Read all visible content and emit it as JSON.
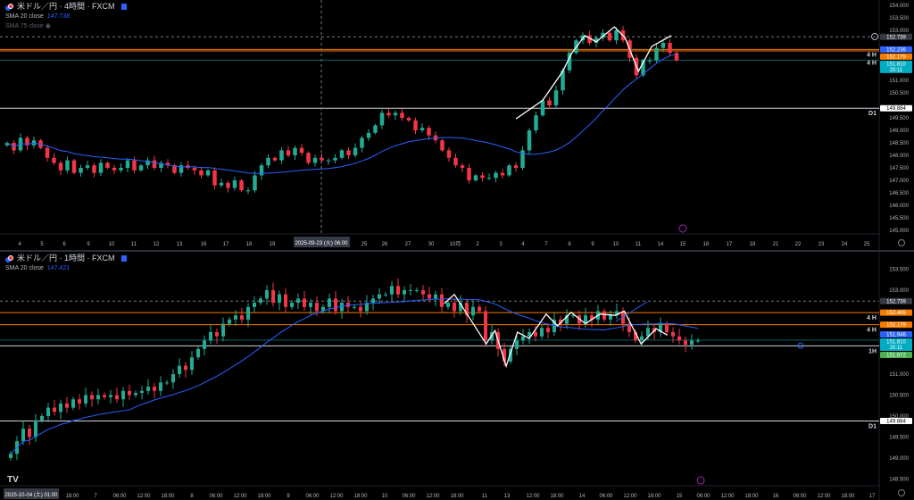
{
  "colors": {
    "up": "#22ab94",
    "down": "#f23645",
    "sma": "#2962ff",
    "bg": "#000000",
    "orange": "#f57c00",
    "teal": "#00bcd4",
    "green": "#4caf50",
    "gray": "#363a45"
  },
  "pane1": {
    "title": "米ドル／円 · 4時間 · FXCM",
    "sma20_label": "SMA 20 close",
    "sma20_value": "147.738",
    "sma75_label": "SMA 75 close",
    "cursor_time": "2025-09-23 (火)  06:00",
    "lines": [
      {
        "price": 152.739,
        "label": "152.739",
        "style": "dashed",
        "color": "#363a45",
        "tag": ""
      },
      {
        "price": 152.236,
        "label": "152.236",
        "style": "solid",
        "color": "#f57c00",
        "tag": "4 H",
        "labelColor": "#2962ff"
      },
      {
        "price": 152.179,
        "label": "152.179",
        "style": "solid",
        "color": "#f57c00",
        "tag": "4 H",
        "labelColor": "#f57c00"
      },
      {
        "price": 151.81,
        "label": "151.810",
        "sub": "20:11",
        "style": "solid",
        "color": "#006064",
        "tag": "",
        "labelColor": "#00acc1"
      },
      {
        "price": 149.884,
        "label": "149.884",
        "style": "solid",
        "color": "#d1d4dc",
        "tag": "D1",
        "labelColor": "#ffffff"
      }
    ]
  },
  "pane2": {
    "title": "米ドル／円 · 1時間 · FXCM",
    "sma20_label": "SMA 20 close",
    "sma20_value": "147.421",
    "cursor_time": "2025-10-04 (土)  01:00",
    "lines": [
      {
        "price": 152.739,
        "label": "152.739",
        "style": "dashed",
        "color": "#363a45",
        "tag": ""
      },
      {
        "price": 152.465,
        "label": "152.465",
        "style": "solid",
        "color": "#f57c00",
        "tag": "4 H",
        "labelColor": "#f57c00"
      },
      {
        "price": 152.179,
        "label": "152.179",
        "style": "solid",
        "color": "#f57c00",
        "tag": "4 H",
        "labelColor": "#f57c00"
      },
      {
        "price": 151.946,
        "label": "151.946",
        "style": "none",
        "color": "#2962ff",
        "tag": "",
        "labelColor": "#2962ff"
      },
      {
        "price": 151.81,
        "label": "151.810",
        "sub": "20:11",
        "style": "solid",
        "color": "#006064",
        "tag": "",
        "labelColor": "#00acc1"
      },
      {
        "price": 151.672,
        "label": "151.672",
        "style": "solid",
        "color": "#d1d4dc",
        "tag": "1H",
        "labelColor": "#4caf50"
      },
      {
        "price": 149.884,
        "label": "149.884",
        "style": "solid",
        "color": "#d1d4dc",
        "tag": "D1",
        "labelColor": "#ffffff"
      }
    ]
  },
  "chart_data": [
    {
      "type": "candlestick",
      "title": "米ドル／円 · 4時間 · FXCM",
      "ylim": [
        144.8,
        154.2
      ],
      "yticks": [
        "154.000",
        "153.500",
        "153.000",
        "151.000",
        "150.500",
        "149.500",
        "149.000",
        "148.500",
        "148.000",
        "147.500",
        "147.000",
        "146.500",
        "146.000",
        "145.500",
        "145.000"
      ],
      "xticks": [
        "4",
        "5",
        "6",
        "9",
        "10",
        "11",
        "12",
        "13",
        "16",
        "17",
        "18",
        "19",
        "25",
        "26",
        "27",
        "30",
        "10月",
        "2",
        "3",
        "4",
        "7",
        "8",
        "9",
        "10",
        "11",
        "14",
        "15",
        "16",
        "17",
        "18",
        "21",
        "22",
        "23",
        "24",
        "25"
      ],
      "closes": [
        148.5,
        148.2,
        148.7,
        148.4,
        148.6,
        148.3,
        147.9,
        147.7,
        147.4,
        147.8,
        147.3,
        147.5,
        147.6,
        147.3,
        147.7,
        147.5,
        147.4,
        147.5,
        147.8,
        147.4,
        147.6,
        147.8,
        147.5,
        147.7,
        147.6,
        147.3,
        147.6,
        147.5,
        147.4,
        147.2,
        147.4,
        146.8,
        146.9,
        146.7,
        147.0,
        146.6,
        146.6,
        147.2,
        147.6,
        147.9,
        147.8,
        148.2,
        148.0,
        148.3,
        148.1,
        147.7,
        147.9,
        147.8,
        147.8,
        147.9,
        148.2,
        148.0,
        148.3,
        148.7,
        148.9,
        149.2,
        149.7,
        149.6,
        149.7,
        149.5,
        149.4,
        149.0,
        149.1,
        148.8,
        148.6,
        148.2,
        147.9,
        147.6,
        147.5,
        147.0,
        147.2,
        147.1,
        147.1,
        147.3,
        147.2,
        147.6,
        147.5,
        148.2,
        149.0,
        149.6,
        150.2,
        150.0,
        150.6,
        151.4,
        152.1,
        152.6,
        152.8,
        152.5,
        152.7,
        152.9,
        152.6,
        153.0,
        152.6,
        151.9,
        151.2,
        151.8,
        151.8,
        152.3,
        152.5,
        152.1,
        151.8
      ],
      "sma_period": 20,
      "zigzag": [
        [
          76,
          149.46
        ],
        [
          80,
          150.2
        ],
        [
          83,
          151.36
        ],
        [
          84.3,
          152.07
        ],
        [
          86.3,
          152.79
        ],
        [
          88,
          152.54
        ],
        [
          90.7,
          153.14
        ],
        [
          92.3,
          152.71
        ],
        [
          94.3,
          151.36
        ],
        [
          96.3,
          152.36
        ],
        [
          99.2,
          152.79
        ]
      ]
    },
    {
      "type": "candlestick",
      "title": "米ドル／円 · 1時間 · FXCM",
      "ylim": [
        148.3,
        153.85
      ],
      "yticks": [
        "153.500",
        "153.000",
        "151.000",
        "150.500",
        "150.000",
        "149.500",
        "149.000",
        "148.500"
      ],
      "xticks": [
        "18:00",
        "7",
        "06:00",
        "12:00",
        "18:00",
        "8",
        "06:00",
        "12:00",
        "18:00",
        "9",
        "06:00",
        "12:00",
        "18:00",
        "10",
        "06:00",
        "12:00",
        "18:00",
        "11",
        "13",
        "12:00",
        "18:00",
        "14",
        "06:00",
        "12:00",
        "18:00",
        "15",
        "06:00",
        "12:00",
        "18:00",
        "16",
        "06:00",
        "12:00",
        "18:00",
        "17"
      ],
      "closes": [
        149.1,
        149.4,
        149.7,
        149.5,
        149.9,
        150.0,
        150.2,
        150.1,
        150.3,
        150.2,
        150.4,
        150.3,
        150.5,
        150.4,
        150.5,
        150.45,
        150.5,
        150.4,
        150.6,
        150.5,
        150.55,
        150.6,
        150.7,
        150.6,
        150.8,
        150.8,
        151.0,
        151.2,
        151.1,
        151.4,
        151.6,
        151.8,
        152.0,
        151.9,
        152.2,
        152.3,
        152.4,
        152.3,
        152.6,
        152.7,
        152.8,
        153.0,
        152.7,
        152.9,
        152.6,
        152.7,
        152.8,
        152.6,
        152.7,
        152.5,
        152.6,
        152.8,
        152.5,
        152.7,
        152.6,
        152.6,
        152.5,
        152.7,
        152.8,
        152.9,
        152.9,
        153.1,
        152.9,
        153.0,
        153.0,
        153.0,
        152.9,
        152.8,
        152.9,
        152.6,
        152.7,
        152.5,
        152.7,
        152.4,
        152.6,
        152.5,
        151.8,
        152.0,
        151.6,
        151.3,
        151.6,
        151.8,
        151.9,
        152.0,
        151.9,
        152.1,
        152.0,
        152.3,
        152.2,
        152.4,
        152.4,
        152.2,
        152.4,
        152.3,
        152.5,
        152.3,
        152.4,
        152.5,
        152.2,
        152.0,
        151.8,
        151.9,
        152.1,
        152.0,
        152.2,
        152.0,
        151.9,
        151.8,
        151.7,
        151.8,
        151.8
      ],
      "sma_period": 20,
      "zigzag": [
        [
          69.4,
          152.68
        ],
        [
          71,
          152.9
        ],
        [
          76.1,
          151.72
        ],
        [
          77.5,
          152.04
        ],
        [
          79.3,
          151.19
        ],
        [
          81.1,
          152.0
        ],
        [
          83,
          151.85
        ],
        [
          85.7,
          152.43
        ],
        [
          87.5,
          152.15
        ],
        [
          89.7,
          152.47
        ],
        [
          92,
          152.2
        ],
        [
          94.3,
          152.43
        ],
        [
          96.8,
          152.4
        ],
        [
          98.2,
          152.5
        ],
        [
          100.9,
          151.72
        ],
        [
          103.3,
          152.08
        ],
        [
          105.1,
          151.93
        ]
      ]
    }
  ]
}
